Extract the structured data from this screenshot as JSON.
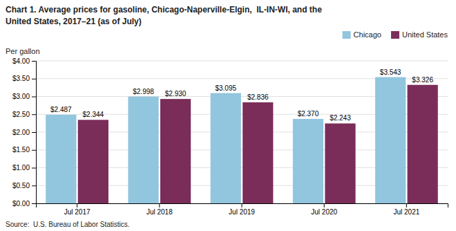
{
  "chart_data": {
    "type": "bar",
    "title": "Chart 1. Average prices for gasoline, Chicago-Naperville-Elgin,  IL-IN-WI, and the",
    "subtitle": "United States, 2017–21 (as of July)",
    "ylabel": "Per gallon",
    "source": "Source:  U.S. Bureau of Labor Statistics.",
    "categories": [
      "Jul 2017",
      "Jul 2018",
      "Jul 2019",
      "Jul 2020",
      "Jul 2021"
    ],
    "series": [
      {
        "name": "Chicago",
        "color": "#92C5DE",
        "values": [
          2.487,
          2.998,
          3.095,
          2.37,
          3.543
        ],
        "value_labels": [
          "$2.487",
          "$2.998",
          "$3.095",
          "$2.370",
          "$3.543"
        ]
      },
      {
        "name": "United States",
        "color": "#7B2D5A",
        "values": [
          2.344,
          2.93,
          2.836,
          2.243,
          3.326
        ],
        "value_labels": [
          "$2.344",
          "$2.930",
          "$2.836",
          "$2.243",
          "$3.326"
        ]
      }
    ],
    "ylim": [
      0,
      4.0
    ],
    "yticks": [
      {
        "value": 0.0,
        "label": "$0.00"
      },
      {
        "value": 0.5,
        "label": "$0.50"
      },
      {
        "value": 1.0,
        "label": "$1.00"
      },
      {
        "value": 1.5,
        "label": "$1.50"
      },
      {
        "value": 2.0,
        "label": "$2.00"
      },
      {
        "value": 2.5,
        "label": "$2.50"
      },
      {
        "value": 3.0,
        "label": "$3.00"
      },
      {
        "value": 3.5,
        "label": "$3.50"
      },
      {
        "value": 4.0,
        "label": "$4.00"
      }
    ],
    "grid": true,
    "legend": "upper right",
    "data_labels": true
  }
}
